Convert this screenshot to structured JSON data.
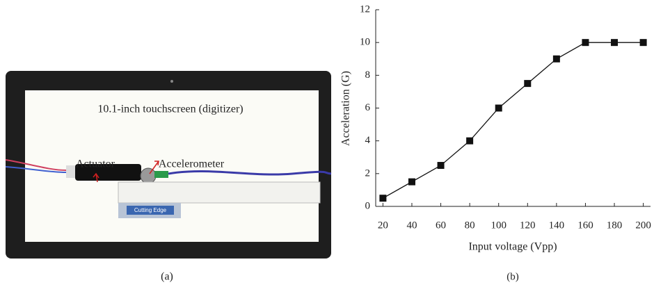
{
  "photo": {
    "screen_label": "10.1-inch touchscreen (digitizer)",
    "actuator_label": "Actuator",
    "accelerometer_label": "Accelerometer",
    "ruler_label": "Cutting Edge",
    "caption": "(a)"
  },
  "chart_data": {
    "type": "line",
    "caption": "(b)",
    "xlabel": "Input voltage (Vpp)",
    "ylabel": "Acceleration (G)",
    "x": [
      20,
      40,
      60,
      80,
      100,
      120,
      140,
      160,
      180,
      200
    ],
    "series": [
      {
        "values": [
          0.5,
          1.5,
          2.5,
          4,
          6,
          7.5,
          9,
          10,
          10,
          10
        ],
        "color": "#111111"
      }
    ],
    "xlim": [
      15,
      205
    ],
    "ylim": [
      0,
      12
    ],
    "xticks": [
      20,
      40,
      60,
      80,
      100,
      120,
      140,
      160,
      180,
      200
    ],
    "yticks": [
      0,
      2,
      4,
      6,
      8,
      10,
      12
    ]
  }
}
